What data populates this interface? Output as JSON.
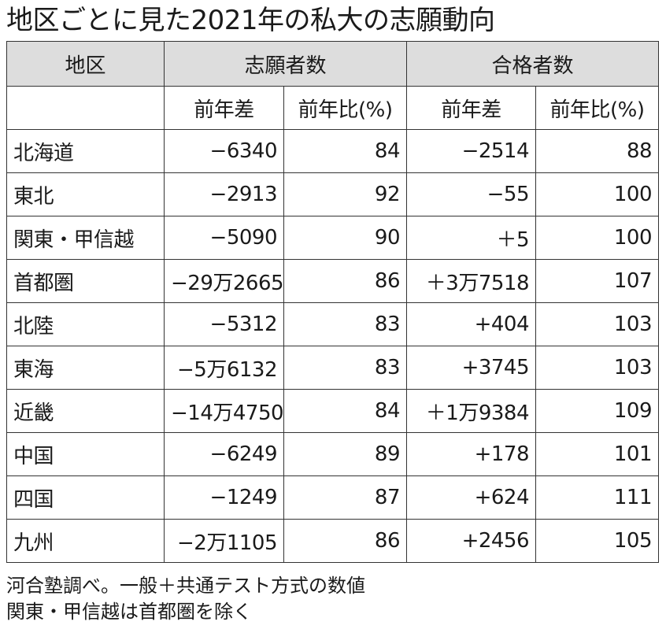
{
  "title": "地区ごとに見た2021年の私大の志願動向",
  "table": {
    "header": {
      "region": "地区",
      "applicants": "志願者数",
      "admitted": "合格者数"
    },
    "subheader": {
      "blank": "",
      "app_diff": "前年差",
      "app_ratio": "前年比(%)",
      "adm_diff": "前年差",
      "adm_ratio": "前年比(%)"
    },
    "rows": [
      {
        "region": "北海道",
        "app_diff": "−6340",
        "app_ratio": "84",
        "adm_diff": "−2514",
        "adm_ratio": "88"
      },
      {
        "region": "東北",
        "app_diff": "−2913",
        "app_ratio": "92",
        "adm_diff": "−55",
        "adm_ratio": "100"
      },
      {
        "region": "関東・甲信越",
        "app_diff": "−5090",
        "app_ratio": "90",
        "adm_diff": "＋5",
        "adm_ratio": "100"
      },
      {
        "region": "首都圏",
        "app_diff": "−29万2665",
        "app_ratio": "86",
        "adm_diff": "＋3万7518",
        "adm_ratio": "107"
      },
      {
        "region": "北陸",
        "app_diff": "−5312",
        "app_ratio": "83",
        "adm_diff": "+404",
        "adm_ratio": "103"
      },
      {
        "region": "東海",
        "app_diff": "−5万6132",
        "app_ratio": "83",
        "adm_diff": "+3745",
        "adm_ratio": "103"
      },
      {
        "region": "近畿",
        "app_diff": "−14万4750",
        "app_ratio": "84",
        "adm_diff": "＋1万9384",
        "adm_ratio": "109"
      },
      {
        "region": "中国",
        "app_diff": "−6249",
        "app_ratio": "89",
        "adm_diff": "+178",
        "adm_ratio": "101"
      },
      {
        "region": "四国",
        "app_diff": "−1249",
        "app_ratio": "87",
        "adm_diff": "+624",
        "adm_ratio": "111"
      },
      {
        "region": "九州",
        "app_diff": "−2万1105",
        "app_ratio": "86",
        "adm_diff": "+2456",
        "adm_ratio": "105"
      }
    ]
  },
  "notes": [
    "河合塾調べ。一般＋共通テスト方式の数値",
    "関東・甲信越は首都圏を除く"
  ],
  "colors": {
    "header_bg": "#dddddd",
    "border": "#333333",
    "text": "#1a1a1a"
  }
}
